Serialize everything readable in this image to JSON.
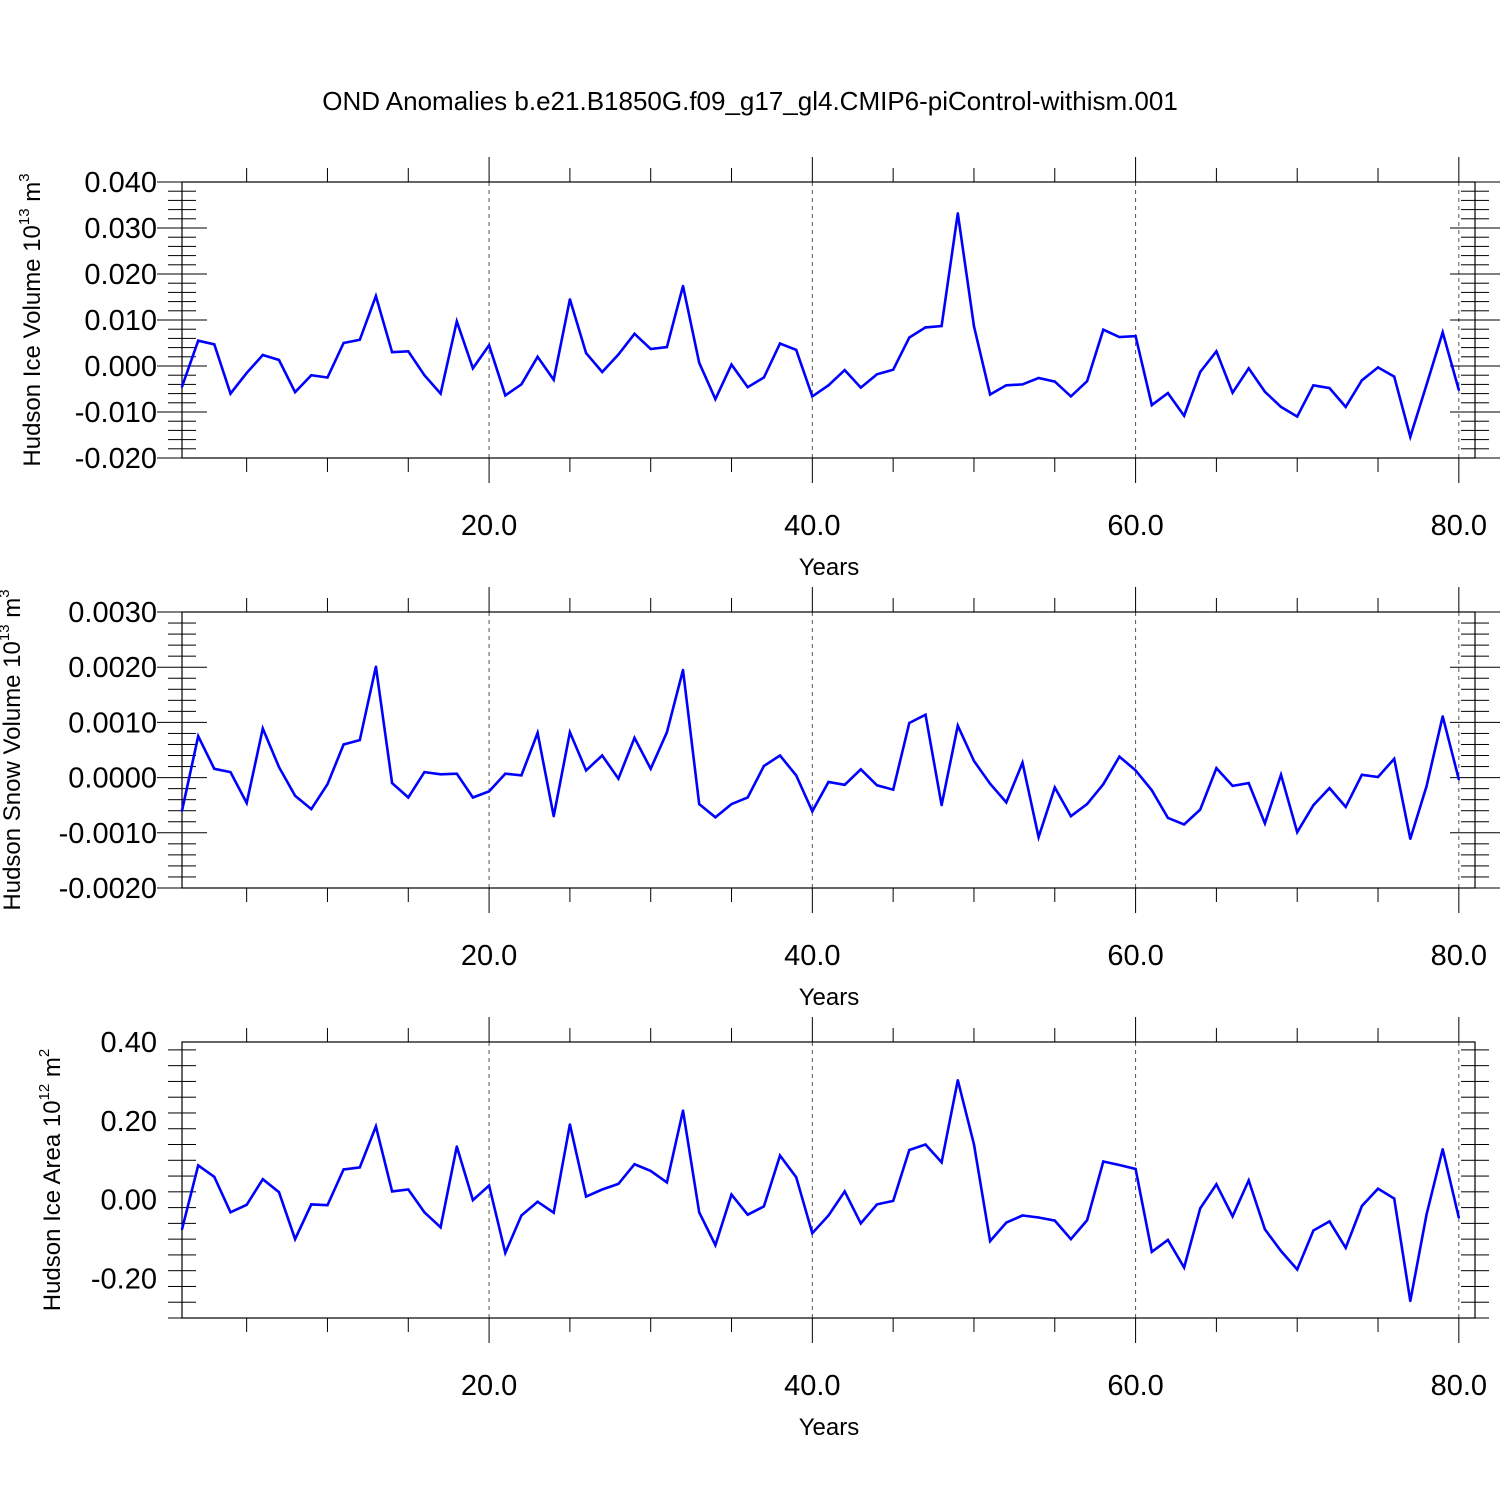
{
  "title": "OND Anomalies b.e21.B1850G.f09_g17_gl4.CMIP6-piControl-withism.001",
  "chart_data": [
    {
      "type": "line",
      "xlabel": "Years",
      "ylabel_main": "Hudson Ice Volume 10",
      "ylabel_exp": "13",
      "ylabel_unit": " m",
      "ylabel_unit_exp": "3",
      "xlim": [
        1,
        81
      ],
      "ylim": [
        -0.02,
        0.04
      ],
      "xticks": [
        "20.0",
        "40.0",
        "60.0",
        "80.0"
      ],
      "yticks": [
        "0.040",
        "0.030",
        "0.020",
        "0.010",
        "0.000",
        "-0.010",
        "-0.020"
      ],
      "ytick_values": [
        0.04,
        0.03,
        0.02,
        0.01,
        0.0,
        -0.01,
        -0.02
      ],
      "xtick_values": [
        20,
        40,
        60,
        80
      ],
      "color": "#0000ff",
      "x_start": 1,
      "values": [
        -0.0045,
        0.0055,
        0.0047,
        -0.006,
        -0.0015,
        0.0024,
        0.0013,
        -0.0057,
        -0.002,
        -0.0025,
        0.005,
        0.0057,
        0.0152,
        0.003,
        0.0032,
        -0.002,
        -0.006,
        0.0097,
        -0.0005,
        0.0045,
        -0.0064,
        -0.004,
        0.002,
        -0.003,
        0.0145,
        0.0028,
        -0.0013,
        0.0025,
        0.007,
        0.0037,
        0.0041,
        0.0174,
        0.0007,
        -0.0072,
        0.0003,
        -0.0046,
        -0.0025,
        0.0049,
        0.0035,
        -0.0066,
        -0.0042,
        -0.0009,
        -0.0047,
        -0.0018,
        -0.0008,
        0.0062,
        0.0084,
        0.0087,
        0.0332,
        0.0086,
        -0.0062,
        -0.0042,
        -0.004,
        -0.0026,
        -0.0034,
        -0.0066,
        -0.0033,
        0.0079,
        0.0063,
        0.0065,
        -0.0085,
        -0.0059,
        -0.0108,
        -0.0013,
        0.0032,
        -0.0058,
        -0.0005,
        -0.0056,
        -0.0089,
        -0.011,
        -0.0042,
        -0.0048,
        -0.0089,
        -0.0031,
        -0.0003,
        -0.0023,
        -0.0154,
        -0.0041,
        0.0073,
        -0.0052
      ]
    },
    {
      "type": "line",
      "xlabel": "Years",
      "ylabel_main": "Hudson Snow Volume 10",
      "ylabel_exp": "13",
      "ylabel_unit": " m",
      "ylabel_unit_exp": "3",
      "xlim": [
        1,
        81
      ],
      "ylim": [
        -0.002,
        0.003
      ],
      "xticks": [
        "20.0",
        "40.0",
        "60.0",
        "80.0"
      ],
      "yticks": [
        "0.0030",
        "0.0020",
        "0.0010",
        "0.0000",
        "-0.0010",
        "-0.0020"
      ],
      "ytick_values": [
        0.003,
        0.002,
        0.001,
        0.0,
        -0.001,
        -0.002
      ],
      "xtick_values": [
        20,
        40,
        60,
        80
      ],
      "color": "#0000ff",
      "x_start": 1,
      "values": [
        -0.0006,
        0.00075,
        0.00016,
        0.0001,
        -0.00046,
        0.00089,
        0.00019,
        -0.00033,
        -0.00057,
        -0.00012,
        0.0006,
        0.00068,
        0.00201,
        -0.0001,
        -0.00036,
        0.0001,
        6e-05,
        7e-05,
        -0.00036,
        -0.00025,
        7e-05,
        4e-05,
        0.00081,
        -0.0007,
        0.00082,
        0.00013,
        0.0004,
        -2e-05,
        0.00072,
        0.00016,
        0.00082,
        0.00195,
        -0.00048,
        -0.00072,
        -0.00048,
        -0.00036,
        0.00021,
        0.0004,
        4e-05,
        -0.00061,
        -8e-05,
        -0.00013,
        0.00015,
        -0.00014,
        -0.00022,
        0.00099,
        0.00114,
        -0.0005,
        0.00094,
        0.0003,
        -0.00011,
        -0.00045,
        0.00027,
        -0.00108,
        -0.00018,
        -0.0007,
        -0.00048,
        -0.00012,
        0.00038,
        0.00013,
        -0.00023,
        -0.00073,
        -0.00085,
        -0.00058,
        0.00017,
        -0.00015,
        -0.0001,
        -0.00083,
        5e-05,
        -0.00099,
        -0.0005,
        -0.00019,
        -0.00053,
        5e-05,
        1e-05,
        0.00034,
        -0.00111,
        -0.00016,
        0.00111,
        -3e-05
      ]
    },
    {
      "type": "line",
      "xlabel": "Years",
      "ylabel_main": "Hudson Ice Area 10",
      "ylabel_exp": "12",
      "ylabel_unit": " m",
      "ylabel_unit_exp": "2",
      "xlim": [
        1,
        81
      ],
      "ylim": [
        -0.3,
        0.4
      ],
      "xticks": [
        "20.0",
        "40.0",
        "60.0",
        "80.0"
      ],
      "yticks": [
        "0.40",
        "0.20",
        "0.00",
        "-0.20"
      ],
      "ytick_values": [
        0.4,
        0.2,
        0.0,
        -0.2
      ],
      "xtick_values": [
        20,
        40,
        60,
        80
      ],
      "color": "#0000ff",
      "x_start": 1,
      "values": [
        -0.075,
        0.087,
        0.058,
        -0.032,
        -0.013,
        0.052,
        0.019,
        -0.1,
        -0.012,
        -0.014,
        0.077,
        0.082,
        0.186,
        0.021,
        0.026,
        -0.032,
        -0.07,
        0.135,
        -0.001,
        0.036,
        -0.135,
        -0.04,
        -0.005,
        -0.033,
        0.191,
        0.008,
        0.026,
        0.04,
        0.09,
        0.073,
        0.044,
        0.226,
        -0.032,
        -0.115,
        0.013,
        -0.038,
        -0.017,
        0.112,
        0.057,
        -0.085,
        -0.04,
        0.021,
        -0.06,
        -0.012,
        -0.003,
        0.126,
        0.14,
        0.095,
        0.303,
        0.14,
        -0.105,
        -0.058,
        -0.04,
        -0.045,
        -0.053,
        -0.1,
        -0.052,
        0.097,
        0.088,
        0.078,
        -0.132,
        -0.102,
        -0.172,
        -0.022,
        0.039,
        -0.042,
        0.049,
        -0.075,
        -0.13,
        -0.177,
        -0.078,
        -0.055,
        -0.122,
        -0.016,
        0.028,
        0.003,
        -0.257,
        -0.038,
        0.128,
        -0.045
      ]
    }
  ]
}
